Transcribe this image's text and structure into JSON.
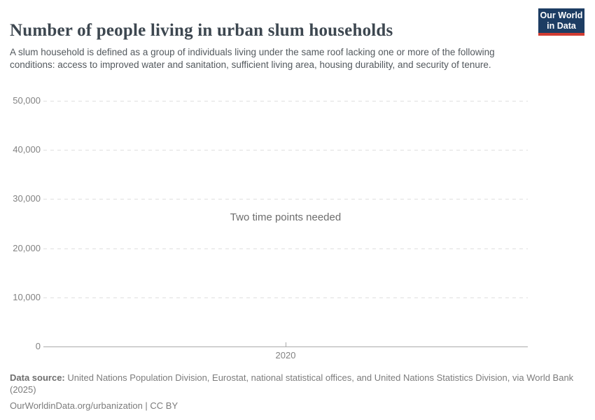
{
  "header": {
    "title": "Number of people living in urban slum households",
    "subtitle": "A slum household is defined as a group of individuals living under the same roof lacking one or more of the following conditions: access to improved water and sanitation, sufficient living area, housing durability, and security of tenure.",
    "logo": {
      "line1": "Our World",
      "line2": "in Data",
      "bg_color": "#1d3d63",
      "bar_color": "#d13c32"
    }
  },
  "chart_data": {
    "type": "line",
    "title": "Number of people living in urban slum households",
    "series": [],
    "empty_state_message": "Two time points needed",
    "x_axis": {
      "ticks": [
        {
          "label": "2020",
          "position": 0.5
        }
      ]
    },
    "y_axis": {
      "ylim": [
        0,
        50000
      ],
      "ticks": [
        {
          "value": 0,
          "label": "0"
        },
        {
          "value": 10000,
          "label": "10,000"
        },
        {
          "value": 20000,
          "label": "20,000"
        },
        {
          "value": 30000,
          "label": "30,000"
        },
        {
          "value": 40000,
          "label": "40,000"
        },
        {
          "value": 50000,
          "label": "50,000"
        }
      ],
      "grid": "dashed horizontal"
    },
    "legend": "none"
  },
  "footer": {
    "data_source_label": "Data source:",
    "data_source_text": " United Nations Population Division, Eurostat, national statistical offices, and United Nations Statistics Division, via World Bank (2025)",
    "url": "OurWorldinData.org/urbanization",
    "separator": " | ",
    "license": "CC BY"
  },
  "colors": {
    "title": "#3d4750",
    "subtitle": "#53595e",
    "tick_label": "#828282",
    "gridline": "#dfdfdf",
    "axis_line": "#ababab",
    "empty_message": "#6d6d6d",
    "footer_text": "#7c7c7c",
    "logo_bg": "#1d3d63",
    "logo_bar": "#d13c32"
  }
}
